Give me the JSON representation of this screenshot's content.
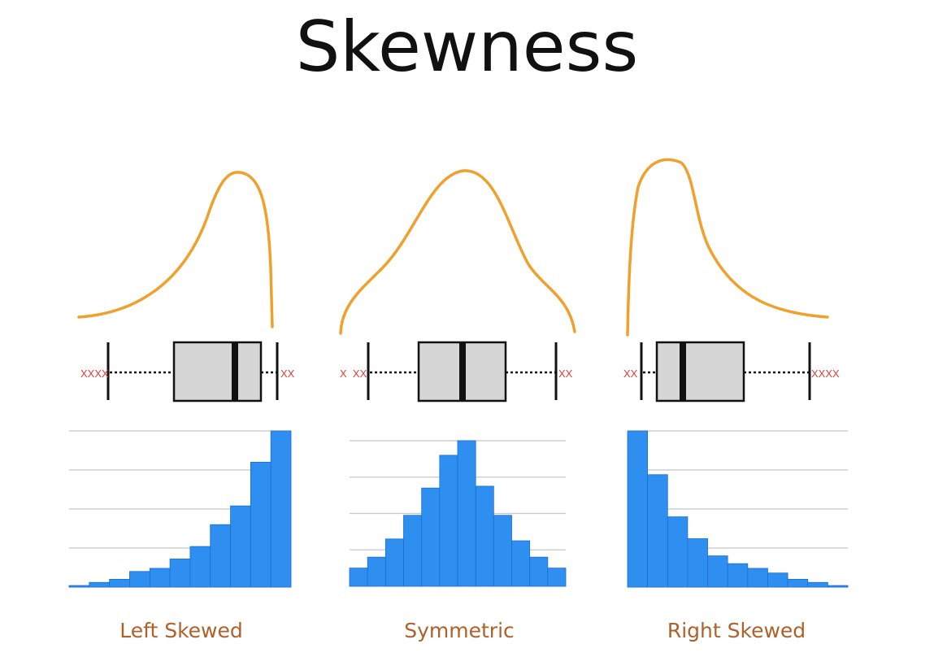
{
  "title": "Skewness",
  "colors": {
    "curve": "#f0a02c",
    "bar": "#2e8ff0",
    "box": "#d6d6d6",
    "outlier": "#e0403a",
    "label": "#b0612a"
  },
  "chart_data": [
    {
      "type": "bar",
      "label": "Left Skewed",
      "values": [
        1,
        3,
        5,
        10,
        12,
        18,
        26,
        40,
        52,
        80,
        100
      ],
      "boxplot": {
        "left_outliers": "XXXX",
        "right_outliers": "XX"
      }
    },
    {
      "type": "bar",
      "label": "Symmetric",
      "values": [
        10,
        16,
        26,
        39,
        54,
        72,
        80,
        55,
        39,
        25,
        16,
        10
      ],
      "boxplot": {
        "left_outliers": "X  XX",
        "right_outliers": "XX"
      }
    },
    {
      "type": "bar",
      "label": "Right Skewed",
      "values": [
        100,
        72,
        45,
        31,
        20,
        15,
        12,
        9,
        5,
        3,
        1
      ],
      "boxplot": {
        "left_outliers": "XX",
        "right_outliers": "XXXX"
      }
    }
  ]
}
